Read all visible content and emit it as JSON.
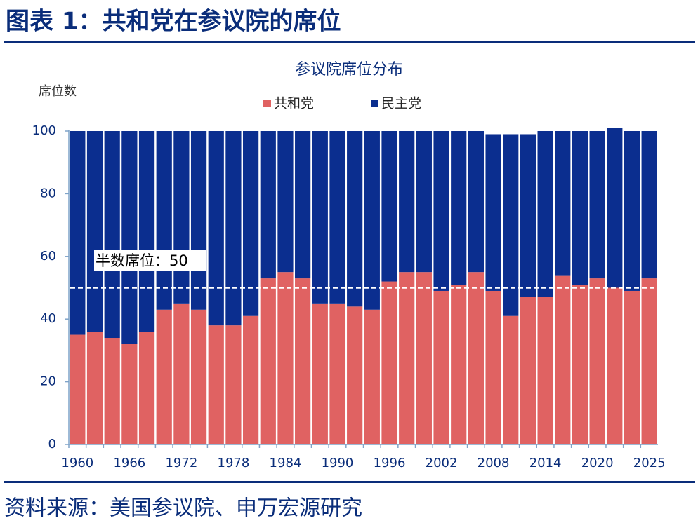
{
  "header": {
    "title": "图表 1：共和党在参议院的席位"
  },
  "source": "资料来源：美国参议院、申万宏源研究",
  "chart_data": {
    "type": "stacked_bar",
    "title": "参议院席位分布",
    "y_label": "席位数",
    "categories": [
      1960,
      null,
      null,
      1966,
      null,
      null,
      1972,
      null,
      null,
      1978,
      null,
      null,
      1984,
      null,
      null,
      1990,
      null,
      null,
      1996,
      null,
      null,
      2002,
      null,
      null,
      2008,
      null,
      null,
      2014,
      null,
      null,
      2020,
      null,
      null,
      2025
    ],
    "series": [
      {
        "name": "共和党",
        "color": "#e06262",
        "values": [
          35,
          36,
          34,
          32,
          36,
          43,
          45,
          43,
          38,
          38,
          41,
          53,
          55,
          53,
          45,
          45,
          44,
          43,
          52,
          55,
          55,
          49,
          51,
          55,
          49,
          41,
          47,
          47,
          54,
          51,
          53,
          50,
          49,
          53
        ]
      },
      {
        "name": "民主党",
        "color": "#0b2e8f",
        "values": [
          65,
          64,
          66,
          68,
          64,
          57,
          55,
          57,
          62,
          62,
          59,
          47,
          45,
          47,
          55,
          55,
          56,
          57,
          48,
          45,
          45,
          51,
          49,
          45,
          50,
          58,
          52,
          53,
          46,
          49,
          47,
          51,
          51,
          47
        ]
      }
    ],
    "ylim": [
      0,
      100
    ],
    "yticks": [
      0,
      20,
      40,
      60,
      80,
      100
    ],
    "annotation": {
      "label": "半数席位：50",
      "value": 50
    },
    "legend": "top"
  }
}
